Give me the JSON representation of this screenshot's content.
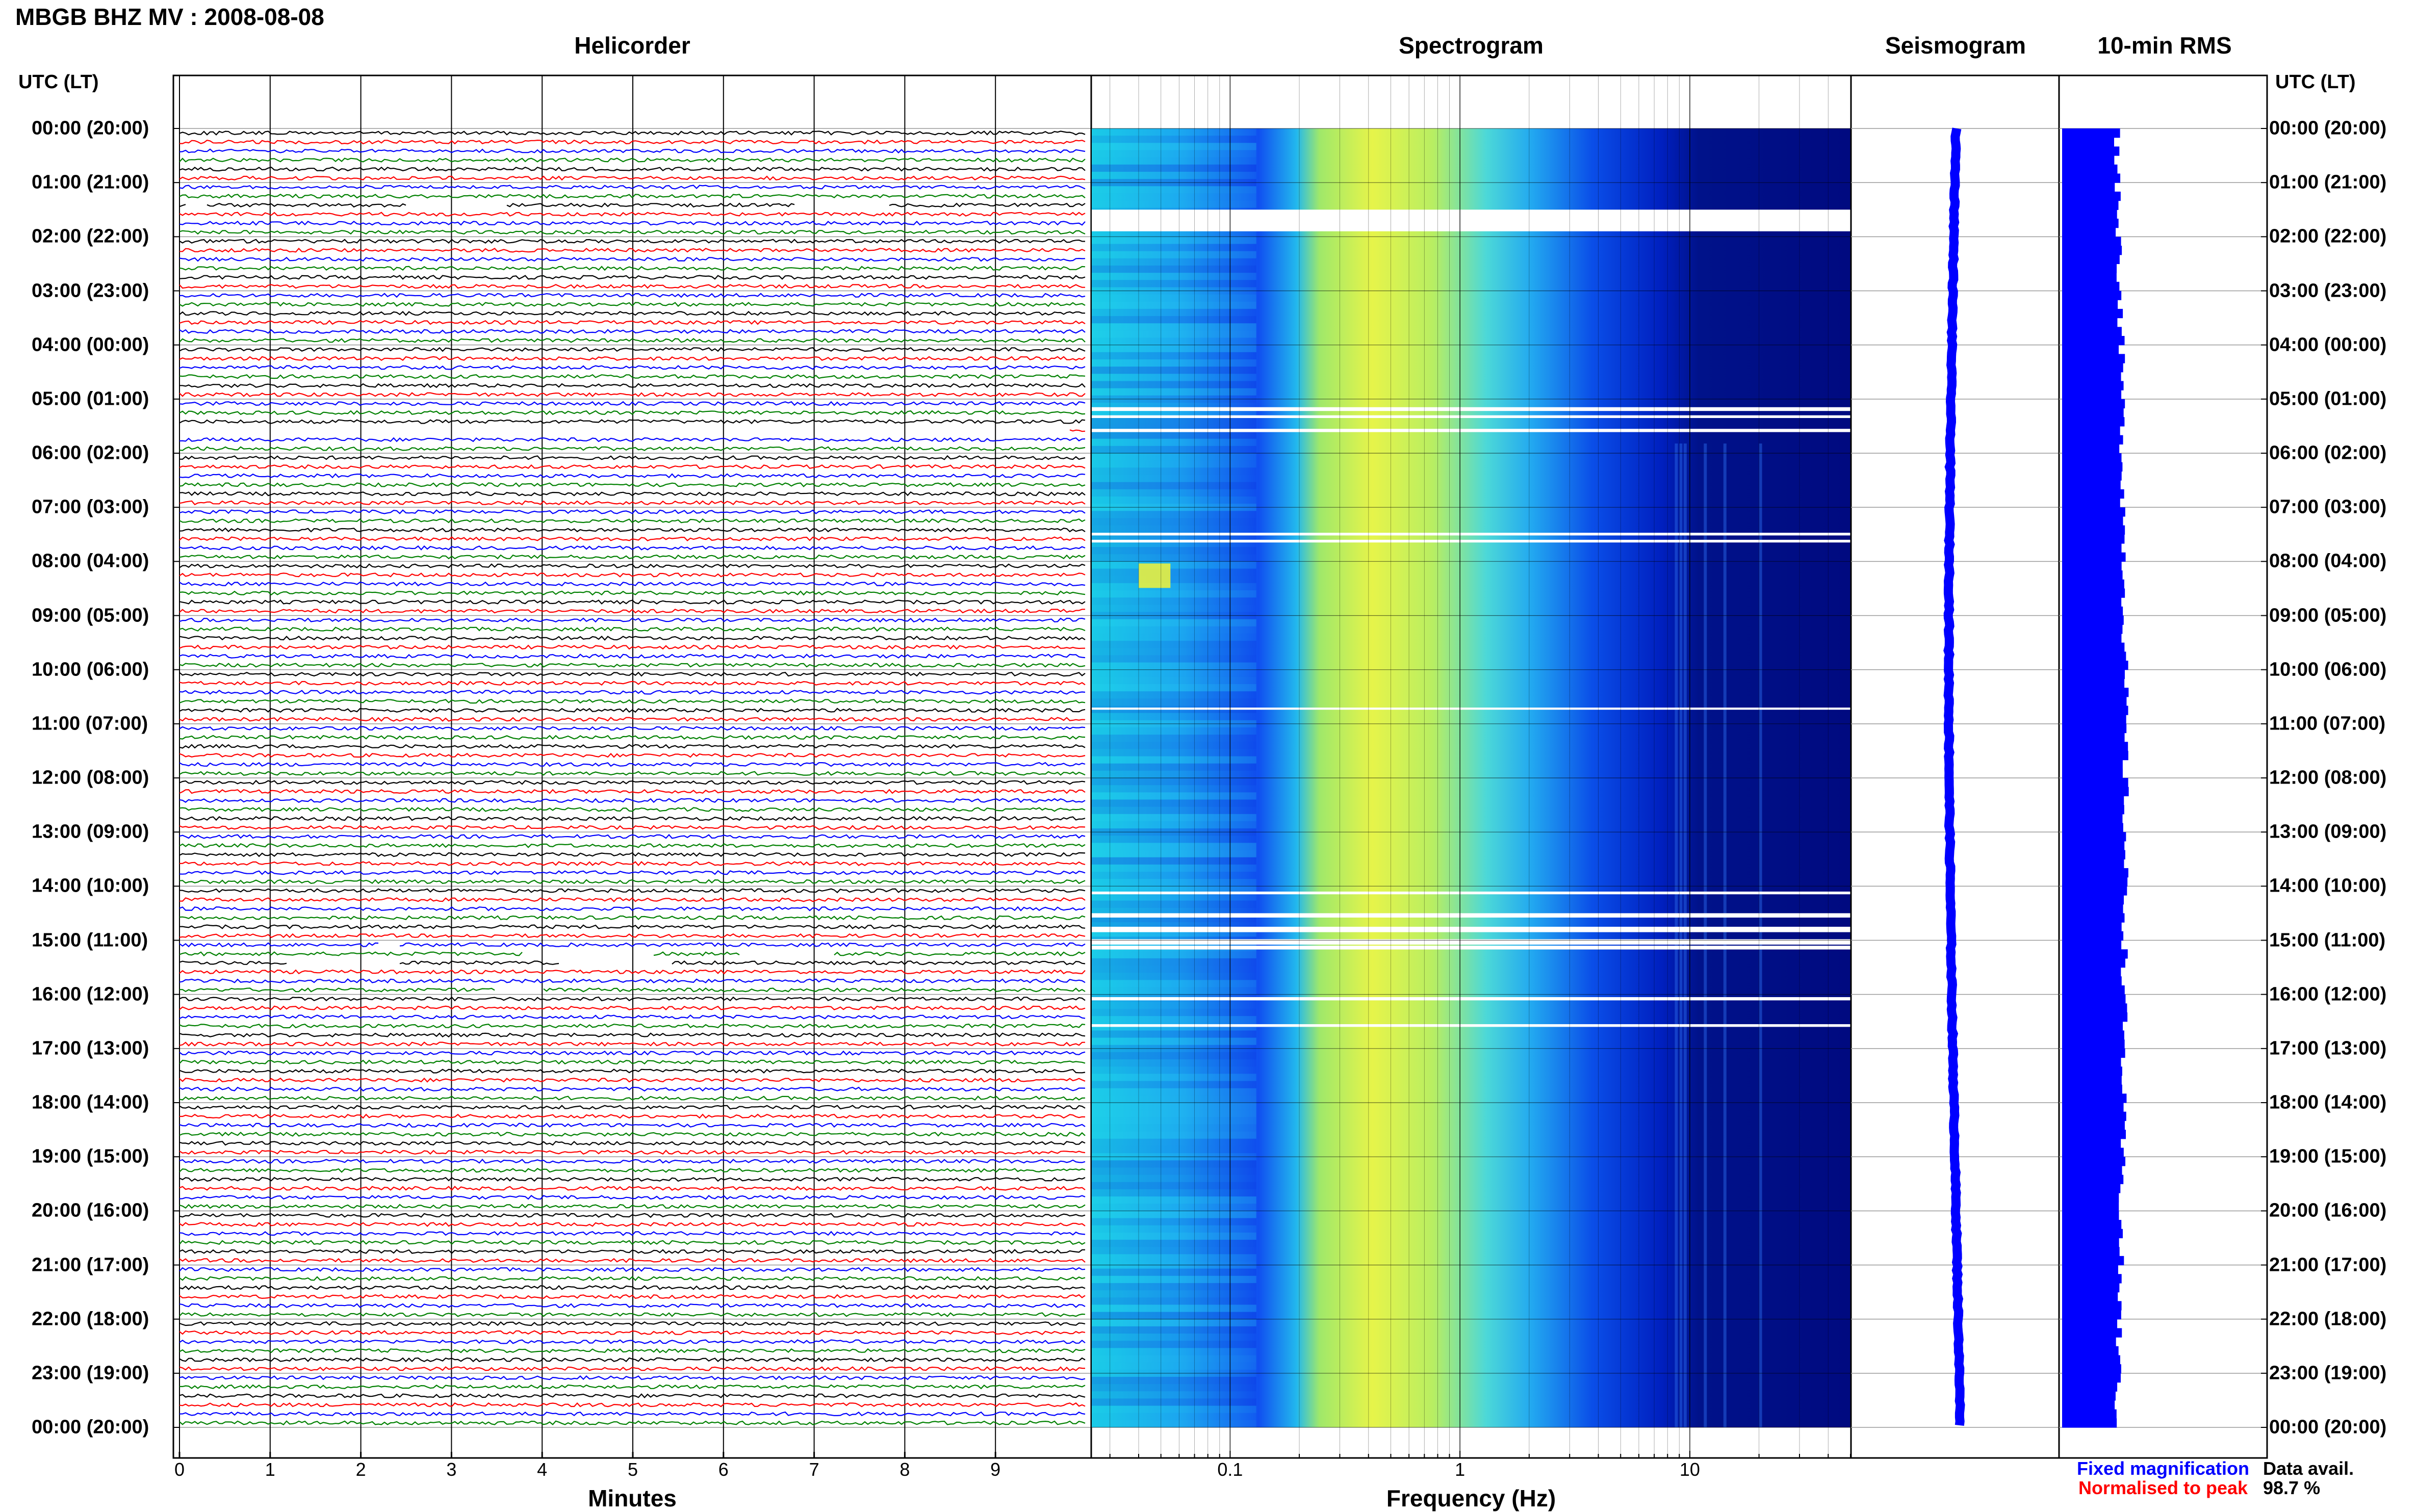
{
  "header": {
    "title": "MBGB BHZ MV : 2008-08-08"
  },
  "panels": {
    "helicorder": "Helicorder",
    "spectrogram": "Spectrogram",
    "seismogram": "Seismogram",
    "rms": "10-min RMS"
  },
  "axes": {
    "left_heading": "UTC (LT)",
    "right_heading": "UTC (LT)",
    "helicorder_xlabel": "Minutes",
    "spectrogram_xlabel": "Frequency (Hz)",
    "minute_ticks": [
      "0",
      "1",
      "2",
      "3",
      "4",
      "5",
      "6",
      "7",
      "8",
      "9"
    ],
    "freq_ticks": [
      "0.1",
      "1",
      "10"
    ]
  },
  "time_labels": [
    "00:00 (20:00)",
    "01:00 (21:00)",
    "02:00 (22:00)",
    "03:00 (23:00)",
    "04:00 (00:00)",
    "05:00 (01:00)",
    "06:00 (02:00)",
    "07:00 (03:00)",
    "08:00 (04:00)",
    "09:00 (05:00)",
    "10:00 (06:00)",
    "11:00 (07:00)",
    "12:00 (08:00)",
    "13:00 (09:00)",
    "14:00 (10:00)",
    "15:00 (11:00)",
    "16:00 (12:00)",
    "17:00 (13:00)",
    "18:00 (14:00)",
    "19:00 (15:00)",
    "20:00 (16:00)",
    "21:00 (17:00)",
    "22:00 (18:00)",
    "23:00 (19:00)",
    "00:00 (20:00)"
  ],
  "legend": {
    "fixed": "Fixed magnification",
    "normalised": "Normalised to peak",
    "fixed_color": "#0000ff",
    "normalised_color": "#ff0000"
  },
  "data_availability": {
    "label": "Data avail.",
    "value": "98.7 %"
  },
  "chart_data": [
    {
      "type": "line",
      "panel": "helicorder",
      "xlabel": "Minutes",
      "xlim": [
        0,
        10
      ],
      "rows_per_hour": 6,
      "trace_colors": [
        "#000000",
        "#ff0000",
        "#0000ff",
        "#008000"
      ]
    },
    {
      "type": "heatmap",
      "panel": "spectrogram",
      "xlabel": "Frequency (Hz)",
      "x_scale": "log",
      "xlim": [
        0.025,
        50
      ],
      "colormap": [
        "#000080",
        "#0000ff",
        "#00ffff",
        "#ffff00"
      ]
    },
    {
      "type": "line",
      "panel": "seismogram",
      "color": "#0000ff"
    },
    {
      "type": "bar",
      "panel": "10-min RMS",
      "color": "#0000ff",
      "orientation": "horizontal"
    }
  ]
}
